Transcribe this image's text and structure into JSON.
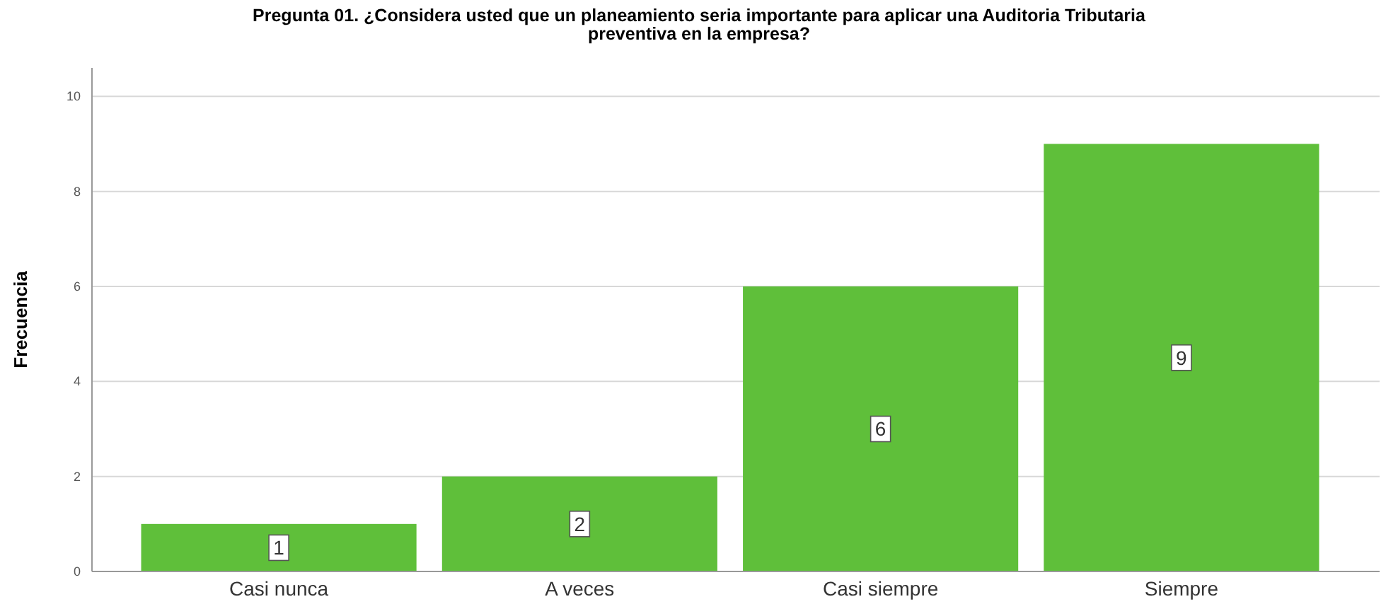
{
  "chart_data": {
    "type": "bar",
    "title": "Pregunta 01. ¿Considera usted que un planeamiento seria importante para aplicar una Auditoria Tributaria preventiva en la empresa?",
    "ylabel": "Frecuencia",
    "categories": [
      "Casi nunca",
      "A veces",
      "Casi siempre",
      "Siempre"
    ],
    "values": [
      1,
      2,
      6,
      9
    ],
    "color": "#5fbf3a",
    "ylim": [
      0,
      10.6
    ],
    "yticks": [
      0,
      2,
      4,
      6,
      8,
      10
    ],
    "grid": "y",
    "data_labels": true
  }
}
